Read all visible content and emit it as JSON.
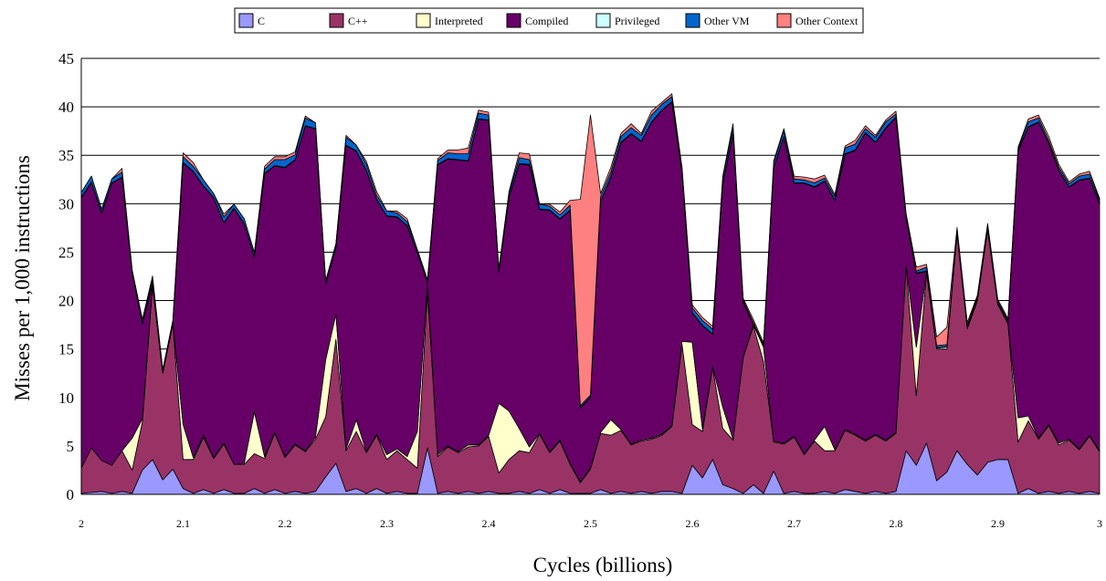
{
  "chart_data": {
    "type": "area",
    "stacked": true,
    "xlabel": "Cycles (billions)",
    "ylabel": "Misses per 1,000 instructions",
    "xlim": [
      2,
      3
    ],
    "ylim": [
      0,
      45
    ],
    "x_ticks": [
      2,
      2.1,
      2.2,
      2.3,
      2.4,
      2.5,
      2.6,
      2.7,
      2.8,
      2.9,
      3
    ],
    "x_tick_labels": [
      "2",
      "2.1",
      "2.2",
      "2.3",
      "2.4",
      "2.5",
      "2.6",
      "2.7",
      "2.8",
      "2.9",
      "3"
    ],
    "y_ticks": [
      0,
      5,
      10,
      15,
      20,
      25,
      30,
      35,
      40,
      45
    ],
    "y_tick_labels": [
      "0",
      "5",
      "10",
      "15",
      "20",
      "25",
      "30",
      "35",
      "40",
      "45"
    ],
    "grid": "horizontal",
    "legend_position": "top",
    "x": [
      2.0,
      2.01,
      2.02,
      2.03,
      2.04,
      2.05,
      2.06,
      2.07,
      2.08,
      2.09,
      2.1,
      2.11,
      2.12,
      2.13,
      2.14,
      2.15,
      2.16,
      2.17,
      2.18,
      2.19,
      2.2,
      2.21,
      2.22,
      2.23,
      2.24,
      2.25,
      2.26,
      2.27,
      2.28,
      2.29,
      2.3,
      2.31,
      2.32,
      2.33,
      2.34,
      2.35,
      2.36,
      2.37,
      2.38,
      2.39,
      2.4,
      2.41,
      2.42,
      2.43,
      2.44,
      2.45,
      2.46,
      2.47,
      2.48,
      2.49,
      2.5,
      2.51,
      2.52,
      2.53,
      2.54,
      2.55,
      2.56,
      2.57,
      2.58,
      2.59,
      2.6,
      2.61,
      2.62,
      2.63,
      2.64,
      2.65,
      2.66,
      2.67,
      2.68,
      2.69,
      2.7,
      2.71,
      2.72,
      2.73,
      2.74,
      2.75,
      2.76,
      2.77,
      2.78,
      2.79,
      2.8,
      2.81,
      2.82,
      2.83,
      2.84,
      2.85,
      2.86,
      2.87,
      2.88,
      2.89,
      2.9,
      2.91,
      2.92,
      2.93,
      2.94,
      2.95,
      2.96,
      2.97,
      2.98,
      2.99,
      3.0
    ],
    "series": [
      {
        "name": "C",
        "color": "#9999ff",
        "values": [
          0.1,
          0.2,
          0.3,
          0.1,
          0.3,
          0.1,
          2.5,
          3.6,
          1.5,
          2.6,
          0.6,
          0.1,
          0.5,
          0.1,
          0.5,
          0.1,
          0.1,
          0.6,
          0.1,
          0.5,
          0.1,
          0.3,
          0.1,
          0.3,
          1.8,
          3.2,
          0.3,
          0.6,
          0.1,
          0.6,
          0.1,
          0.3,
          0.1,
          0.1,
          4.8,
          0.1,
          0.3,
          0.1,
          0.3,
          0.1,
          0.3,
          0.1,
          0.1,
          0.3,
          0.1,
          0.5,
          0.1,
          0.5,
          0.1,
          0.1,
          0.1,
          0.5,
          0.1,
          0.3,
          0.1,
          0.3,
          0.1,
          0.3,
          0.3,
          0.1,
          3.0,
          1.7,
          3.6,
          1.0,
          0.6,
          0.1,
          1.0,
          0.1,
          2.4,
          0.1,
          0.3,
          0.1,
          0.1,
          0.3,
          0.1,
          0.5,
          0.3,
          0.1,
          0.3,
          0.1,
          0.3,
          4.5,
          3.0,
          5.3,
          1.4,
          2.3,
          4.5,
          3.1,
          2.0,
          3.3,
          3.6,
          3.6,
          0.1,
          0.6,
          0.1,
          0.3,
          0.1,
          0.3,
          0.1,
          0.3,
          0.1
        ]
      },
      {
        "name": "C++",
        "color": "#993366",
        "values": [
          2.6,
          4.6,
          3.2,
          2.9,
          4.2,
          2.4,
          5.0,
          17.9,
          11.0,
          15.0,
          3.0,
          3.5,
          5.4,
          3.6,
          4.7,
          3.0,
          3.0,
          3.6,
          3.6,
          5.8,
          3.7,
          4.8,
          4.3,
          5.4,
          6.2,
          12.8,
          4.2,
          5.9,
          4.2,
          5.5,
          3.5,
          4.2,
          3.5,
          2.6,
          16.2,
          3.8,
          4.6,
          4.2,
          4.6,
          4.9,
          5.7,
          2.1,
          3.5,
          4.2,
          4.2,
          5.7,
          4.2,
          5.0,
          3.0,
          1.1,
          2.5,
          5.8,
          6.0,
          6.3,
          5.0,
          5.2,
          5.6,
          5.8,
          6.7,
          15.4,
          4.2,
          4.8,
          9.5,
          5.8,
          5.0,
          14.0,
          16.4,
          13.6,
          3.0,
          5.1,
          5.6,
          4.0,
          5.4,
          4.2,
          4.4,
          6.1,
          5.8,
          5.4,
          5.8,
          5.4,
          6.0,
          19.0,
          7.2,
          17.6,
          13.6,
          12.7,
          22.5,
          14.0,
          18.0,
          24.0,
          16.0,
          14.0,
          5.3,
          7.0,
          5.6,
          6.8,
          5.0,
          5.3,
          4.5,
          5.7,
          4.3
        ]
      },
      {
        "name": "Interpreted",
        "color": "#ffffcc",
        "values": [
          0.0,
          0.0,
          0.0,
          0.0,
          0.0,
          3.3,
          0.3,
          0.2,
          0.1,
          0.1,
          3.6,
          0.2,
          0.2,
          0.1,
          0.1,
          0.0,
          0.1,
          4.3,
          0.2,
          0.1,
          0.1,
          0.1,
          0.1,
          0.2,
          5.9,
          2.6,
          0.2,
          1.2,
          0.1,
          0.1,
          0.5,
          0.2,
          0.3,
          3.8,
          0.8,
          0.2,
          0.1,
          0.1,
          0.2,
          0.1,
          0.1,
          7.2,
          5.0,
          2.3,
          0.6,
          0.1,
          0.1,
          0.1,
          0.1,
          0.1,
          0.1,
          0.1,
          1.6,
          0.1,
          0.1,
          0.1,
          0.1,
          0.1,
          0.1,
          0.3,
          8.5,
          0.3,
          0.1,
          2.2,
          0.1,
          0.1,
          0.1,
          1.5,
          0.1,
          0.1,
          0.1,
          0.1,
          0.1,
          2.5,
          0.1,
          0.1,
          0.1,
          0.1,
          0.1,
          0.1,
          0.1,
          0.1,
          5.0,
          0.1,
          0.1,
          0.2,
          0.1,
          0.1,
          0.1,
          0.1,
          0.1,
          0.1,
          2.5,
          0.5,
          0.1,
          0.1,
          0.2,
          0.1,
          0.1,
          0.1,
          0.1
        ]
      },
      {
        "name": "Compiled",
        "color": "#660066",
        "values": [
          27.9,
          27.4,
          25.5,
          29.1,
          28.2,
          17.0,
          9.8,
          0.0,
          0.0,
          0.0,
          27.0,
          29.5,
          25.7,
          26.8,
          22.7,
          26.4,
          24.7,
          16.0,
          29.2,
          27.5,
          29.8,
          29.3,
          33.5,
          31.8,
          7.8,
          6.8,
          31.3,
          27.7,
          29.0,
          24.2,
          24.6,
          23.9,
          23.8,
          18.4,
          0.0,
          29.9,
          29.6,
          30.1,
          29.3,
          33.6,
          32.5,
          13.5,
          22.0,
          27.3,
          29.1,
          23.1,
          24.9,
          22.8,
          26.1,
          7.6,
          7.3,
          23.8,
          25.0,
          29.6,
          32.0,
          30.8,
          32.6,
          33.4,
          33.4,
          17.3,
          3.0,
          10.6,
          3.3,
          23.0,
          31.5,
          5.6,
          0.0,
          0.0,
          28.2,
          31.6,
          26.1,
          27.9,
          26.1,
          25.3,
          25.7,
          28.4,
          29.3,
          31.7,
          30.1,
          32.2,
          32.5,
          4.8,
          7.6,
          0.0,
          0.0,
          0.0,
          0.0,
          0.0,
          0.0,
          0.0,
          0.0,
          0.0,
          27.5,
          29.8,
          32.6,
          29.0,
          28.1,
          26.0,
          27.7,
          26.5,
          25.5
        ]
      },
      {
        "name": "Privileged",
        "color": "#ccffff",
        "values": [
          0.05,
          0.05,
          0.05,
          0.05,
          0.05,
          0.05,
          0.05,
          0.05,
          0.05,
          0.05,
          0.05,
          0.05,
          0.05,
          0.05,
          0.05,
          0.05,
          0.05,
          0.05,
          0.05,
          0.05,
          0.05,
          0.05,
          0.05,
          0.05,
          0.05,
          0.05,
          0.05,
          0.05,
          0.05,
          0.05,
          0.05,
          0.05,
          0.05,
          0.05,
          0.05,
          0.05,
          0.05,
          0.05,
          0.05,
          0.05,
          0.05,
          0.05,
          0.05,
          0.05,
          0.05,
          0.05,
          0.05,
          0.05,
          0.05,
          0.05,
          0.05,
          0.05,
          0.05,
          0.05,
          0.05,
          0.05,
          0.05,
          0.05,
          0.05,
          0.05,
          0.05,
          0.05,
          0.05,
          0.05,
          0.05,
          0.05,
          0.05,
          0.05,
          0.05,
          0.05,
          0.05,
          0.05,
          0.05,
          0.05,
          0.05,
          0.05,
          0.05,
          0.05,
          0.05,
          0.05,
          0.05,
          0.05,
          0.05,
          0.05,
          0.05,
          0.05,
          0.05,
          0.05,
          0.05,
          0.05,
          0.05,
          0.05,
          0.05,
          0.05,
          0.05,
          0.05,
          0.05,
          0.05,
          0.05,
          0.05,
          0.05
        ]
      },
      {
        "name": "Other VM",
        "color": "#0066cc",
        "values": [
          0.5,
          0.6,
          0.4,
          0.4,
          0.5,
          0.3,
          0.4,
          0.4,
          0.2,
          0.2,
          0.6,
          0.5,
          0.6,
          0.4,
          0.6,
          0.4,
          0.5,
          0.4,
          0.4,
          0.6,
          0.8,
          0.5,
          0.8,
          0.6,
          0.3,
          0.4,
          0.8,
          0.6,
          0.6,
          0.4,
          0.5,
          0.4,
          0.4,
          0.3,
          0.3,
          0.4,
          0.6,
          0.6,
          0.7,
          0.6,
          0.5,
          0.3,
          0.4,
          0.6,
          0.5,
          0.5,
          0.4,
          0.4,
          0.5,
          0.2,
          0.2,
          0.5,
          0.5,
          0.6,
          0.6,
          0.6,
          0.7,
          0.6,
          0.5,
          0.4,
          0.5,
          0.5,
          0.5,
          0.6,
          0.6,
          0.2,
          0.2,
          0.2,
          0.5,
          0.6,
          0.4,
          0.3,
          0.4,
          0.3,
          0.4,
          0.6,
          0.6,
          0.4,
          0.5,
          0.6,
          0.3,
          0.2,
          0.2,
          0.4,
          0.2,
          0.2,
          0.2,
          0.2,
          0.2,
          0.2,
          0.2,
          0.2,
          0.2,
          0.5,
          0.4,
          0.3,
          0.3,
          0.3,
          0.4,
          0.4,
          0.3
        ]
      },
      {
        "name": "Other Context",
        "color": "#ff8080",
        "values": [
          0.0,
          0.0,
          0.0,
          0.0,
          0.4,
          0.0,
          0.0,
          0.4,
          0.0,
          0.0,
          0.4,
          0.4,
          0.0,
          0.0,
          0.3,
          0.0,
          0.0,
          0.0,
          0.3,
          0.3,
          0.3,
          0.3,
          0.2,
          0.0,
          0.0,
          0.0,
          0.2,
          0.0,
          0.3,
          0.4,
          0.0,
          0.2,
          0.3,
          0.0,
          0.0,
          0.2,
          0.3,
          0.4,
          0.6,
          0.3,
          0.3,
          0.0,
          0.2,
          0.5,
          0.6,
          0.0,
          0.2,
          0.3,
          0.5,
          21.3,
          28.9,
          0.3,
          0.5,
          0.3,
          0.4,
          0.2,
          0.4,
          0.2,
          0.3,
          0.2,
          0.3,
          0.3,
          0.3,
          0.2,
          0.4,
          0.2,
          0.3,
          0.2,
          0.2,
          0.2,
          0.3,
          0.3,
          0.4,
          0.3,
          0.2,
          0.2,
          0.4,
          0.3,
          0.2,
          0.2,
          0.3,
          0.3,
          0.4,
          0.3,
          0.9,
          1.8,
          0.2,
          0.3,
          0.2,
          0.3,
          0.2,
          0.2,
          0.2,
          0.3,
          0.3,
          0.4,
          0.3,
          0.2,
          0.2,
          0.3,
          0.2
        ]
      }
    ]
  }
}
